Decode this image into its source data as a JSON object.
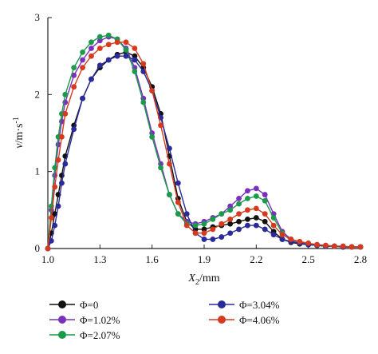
{
  "chart_data": {
    "type": "line",
    "title": "",
    "xlabel": {
      "var": "X",
      "sub": "2",
      "unit": "/mm"
    },
    "ylabel": {
      "var": "v",
      "unit": "/m·s",
      "sup": "-1"
    },
    "xlim": [
      1.0,
      2.8
    ],
    "ylim": [
      0,
      3
    ],
    "xticks": [
      "1.0",
      "1.3",
      "1.6",
      "1.9",
      "2.2",
      "2.5",
      "2.8"
    ],
    "yticks": [
      "0",
      "1",
      "2",
      "3"
    ],
    "grid": false,
    "legend_position": "bottom",
    "series": [
      {
        "name": "Φ=0",
        "color": "#111111",
        "x": [
          1.0,
          1.02,
          1.04,
          1.06,
          1.08,
          1.1,
          1.15,
          1.2,
          1.25,
          1.3,
          1.35,
          1.4,
          1.45,
          1.5,
          1.55,
          1.6,
          1.65,
          1.7,
          1.75,
          1.8,
          1.85,
          1.9,
          1.95,
          2.0,
          2.05,
          2.1,
          2.15,
          2.2,
          2.25,
          2.3,
          2.35,
          2.4,
          2.45,
          2.5,
          2.55,
          2.6,
          2.65,
          2.7,
          2.75,
          2.8
        ],
        "y": [
          0.0,
          0.2,
          0.45,
          0.7,
          0.95,
          1.2,
          1.6,
          1.95,
          2.2,
          2.35,
          2.45,
          2.52,
          2.55,
          2.5,
          2.35,
          2.1,
          1.75,
          1.2,
          0.65,
          0.35,
          0.25,
          0.25,
          0.28,
          0.3,
          0.32,
          0.35,
          0.38,
          0.4,
          0.35,
          0.22,
          0.12,
          0.08,
          0.06,
          0.05,
          0.04,
          0.03,
          0.03,
          0.02,
          0.02,
          0.02
        ]
      },
      {
        "name": "Φ=1.02%",
        "color": "#7b2fbe",
        "x": [
          1.0,
          1.02,
          1.04,
          1.06,
          1.08,
          1.1,
          1.15,
          1.2,
          1.25,
          1.3,
          1.35,
          1.4,
          1.45,
          1.5,
          1.55,
          1.6,
          1.65,
          1.7,
          1.75,
          1.8,
          1.85,
          1.9,
          1.95,
          2.0,
          2.05,
          2.1,
          2.15,
          2.2,
          2.25,
          2.3,
          2.35,
          2.4,
          2.45,
          2.5,
          2.55,
          2.6,
          2.65,
          2.7,
          2.75,
          2.8
        ],
        "y": [
          0.0,
          0.5,
          0.95,
          1.35,
          1.65,
          1.9,
          2.25,
          2.45,
          2.6,
          2.7,
          2.75,
          2.72,
          2.6,
          2.35,
          1.95,
          1.5,
          1.1,
          0.7,
          0.45,
          0.35,
          0.32,
          0.35,
          0.4,
          0.45,
          0.55,
          0.65,
          0.75,
          0.78,
          0.7,
          0.45,
          0.22,
          0.12,
          0.08,
          0.06,
          0.05,
          0.04,
          0.03,
          0.03,
          0.02,
          0.02
        ]
      },
      {
        "name": "Φ=2.07%",
        "color": "#1a9a4a",
        "x": [
          1.0,
          1.02,
          1.04,
          1.06,
          1.08,
          1.1,
          1.15,
          1.2,
          1.25,
          1.3,
          1.35,
          1.4,
          1.45,
          1.5,
          1.55,
          1.6,
          1.65,
          1.7,
          1.75,
          1.8,
          1.85,
          1.9,
          1.95,
          2.0,
          2.05,
          2.1,
          2.15,
          2.2,
          2.25,
          2.3,
          2.35,
          2.4,
          2.45,
          2.5,
          2.55,
          2.6,
          2.65,
          2.7,
          2.75,
          2.8
        ],
        "y": [
          0.0,
          0.55,
          1.05,
          1.45,
          1.75,
          2.0,
          2.35,
          2.55,
          2.68,
          2.75,
          2.77,
          2.72,
          2.58,
          2.3,
          1.9,
          1.45,
          1.05,
          0.7,
          0.45,
          0.32,
          0.3,
          0.32,
          0.38,
          0.45,
          0.5,
          0.58,
          0.65,
          0.68,
          0.62,
          0.4,
          0.2,
          0.1,
          0.07,
          0.05,
          0.04,
          0.03,
          0.03,
          0.02,
          0.02,
          0.02
        ]
      },
      {
        "name": "Φ=3.04%",
        "color": "#2a2a9a",
        "x": [
          1.0,
          1.02,
          1.04,
          1.06,
          1.08,
          1.1,
          1.15,
          1.2,
          1.25,
          1.3,
          1.35,
          1.4,
          1.45,
          1.5,
          1.55,
          1.6,
          1.65,
          1.7,
          1.75,
          1.8,
          1.85,
          1.9,
          1.95,
          2.0,
          2.05,
          2.1,
          2.15,
          2.2,
          2.25,
          2.3,
          2.35,
          2.4,
          2.45,
          2.5,
          2.55,
          2.6,
          2.65,
          2.7,
          2.75,
          2.8
        ],
        "y": [
          0.0,
          0.1,
          0.3,
          0.55,
          0.85,
          1.1,
          1.55,
          1.95,
          2.2,
          2.38,
          2.45,
          2.5,
          2.5,
          2.45,
          2.3,
          2.05,
          1.7,
          1.3,
          0.85,
          0.45,
          0.2,
          0.12,
          0.12,
          0.15,
          0.2,
          0.25,
          0.3,
          0.3,
          0.25,
          0.18,
          0.12,
          0.09,
          0.07,
          0.05,
          0.04,
          0.03,
          0.03,
          0.02,
          0.02,
          0.02
        ]
      },
      {
        "name": "Φ=4.06%",
        "color": "#d63a1e",
        "x": [
          1.0,
          1.02,
          1.04,
          1.06,
          1.08,
          1.1,
          1.15,
          1.2,
          1.25,
          1.3,
          1.35,
          1.4,
          1.45,
          1.5,
          1.55,
          1.6,
          1.65,
          1.7,
          1.75,
          1.8,
          1.85,
          1.9,
          1.95,
          2.0,
          2.05,
          2.1,
          2.15,
          2.2,
          2.25,
          2.3,
          2.35,
          2.4,
          2.45,
          2.5,
          2.55,
          2.6,
          2.65,
          2.7,
          2.75,
          2.8
        ],
        "y": [
          0.0,
          0.4,
          0.8,
          1.15,
          1.45,
          1.75,
          2.1,
          2.35,
          2.5,
          2.6,
          2.65,
          2.68,
          2.68,
          2.6,
          2.4,
          2.05,
          1.6,
          1.1,
          0.6,
          0.3,
          0.2,
          0.2,
          0.25,
          0.32,
          0.38,
          0.45,
          0.5,
          0.52,
          0.45,
          0.3,
          0.18,
          0.12,
          0.09,
          0.07,
          0.05,
          0.04,
          0.03,
          0.03,
          0.02,
          0.02
        ]
      }
    ]
  }
}
